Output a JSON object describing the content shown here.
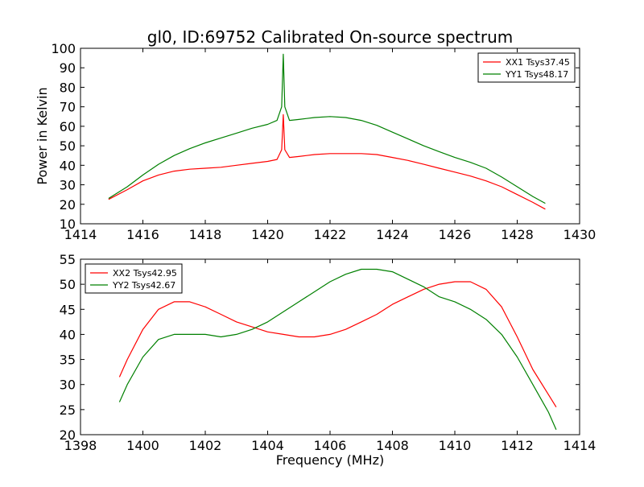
{
  "title": "gl0, ID:69752 Calibrated On-source spectrum",
  "colors": {
    "xx": "#ff0000",
    "yy": "#008000"
  },
  "chart_data": [
    {
      "type": "line",
      "ylabel": "Power in Kelvin",
      "xlabel": "",
      "xlim": [
        1414,
        1430
      ],
      "ylim": [
        10,
        100
      ],
      "xticks": [
        1414,
        1416,
        1418,
        1420,
        1422,
        1424,
        1426,
        1428,
        1430
      ],
      "yticks": [
        10,
        20,
        30,
        40,
        50,
        60,
        70,
        80,
        90,
        100
      ],
      "legend_position": "top-right",
      "series": [
        {
          "name": "XX1 Tsys37.45",
          "color": "#ff0000",
          "x": [
            1414.9,
            1415.5,
            1416.0,
            1416.5,
            1417.0,
            1417.5,
            1418.0,
            1418.5,
            1419.0,
            1419.5,
            1420.0,
            1420.3,
            1420.45,
            1420.5,
            1420.55,
            1420.7,
            1421.0,
            1421.5,
            1422.0,
            1422.5,
            1423.0,
            1423.5,
            1424.0,
            1424.5,
            1425.0,
            1425.5,
            1426.0,
            1426.5,
            1427.0,
            1427.5,
            1428.0,
            1428.5,
            1428.9
          ],
          "y": [
            22.5,
            27.5,
            32.0,
            35.0,
            37.0,
            38.0,
            38.5,
            39.0,
            40.0,
            41.0,
            42.0,
            43.0,
            48.0,
            66.0,
            48.0,
            44.0,
            44.5,
            45.5,
            46.0,
            46.0,
            46.0,
            45.5,
            44.0,
            42.5,
            40.5,
            38.5,
            36.5,
            34.5,
            32.0,
            29.0,
            25.0,
            21.0,
            17.5
          ]
        },
        {
          "name": "YY1 Tsys48.17",
          "color": "#008000",
          "x": [
            1414.9,
            1415.5,
            1416.0,
            1416.5,
            1417.0,
            1417.5,
            1418.0,
            1418.5,
            1419.0,
            1419.5,
            1420.0,
            1420.3,
            1420.45,
            1420.5,
            1420.55,
            1420.7,
            1421.0,
            1421.5,
            1422.0,
            1422.5,
            1423.0,
            1423.5,
            1424.0,
            1424.5,
            1425.0,
            1425.5,
            1426.0,
            1426.5,
            1427.0,
            1427.5,
            1428.0,
            1428.5,
            1428.9
          ],
          "y": [
            23.0,
            29.0,
            35.0,
            40.5,
            45.0,
            48.5,
            51.5,
            54.0,
            56.5,
            59.0,
            61.0,
            63.0,
            70.0,
            97.0,
            70.0,
            63.0,
            63.5,
            64.5,
            65.0,
            64.5,
            63.0,
            60.5,
            57.0,
            53.5,
            50.0,
            47.0,
            44.0,
            41.5,
            38.5,
            34.0,
            29.0,
            24.0,
            20.5
          ]
        }
      ]
    },
    {
      "type": "line",
      "ylabel": "",
      "xlabel": "Frequency (MHz)",
      "xlim": [
        1398,
        1414
      ],
      "ylim": [
        20,
        55
      ],
      "xticks": [
        1398,
        1400,
        1402,
        1404,
        1406,
        1408,
        1410,
        1412,
        1414
      ],
      "yticks": [
        20,
        25,
        30,
        35,
        40,
        45,
        50,
        55
      ],
      "legend_position": "top-left",
      "series": [
        {
          "name": "XX2 Tsys42.95",
          "color": "#ff0000",
          "x": [
            1399.25,
            1399.5,
            1400.0,
            1400.5,
            1401.0,
            1401.5,
            1402.0,
            1402.5,
            1403.0,
            1403.5,
            1404.0,
            1404.5,
            1405.0,
            1405.5,
            1406.0,
            1406.5,
            1407.0,
            1407.5,
            1408.0,
            1408.5,
            1409.0,
            1409.5,
            1410.0,
            1410.5,
            1411.0,
            1411.5,
            1412.0,
            1412.5,
            1413.0,
            1413.25
          ],
          "y": [
            31.5,
            35.0,
            41.0,
            45.0,
            46.5,
            46.5,
            45.5,
            44.0,
            42.5,
            41.5,
            40.5,
            40.0,
            39.5,
            39.5,
            40.0,
            41.0,
            42.5,
            44.0,
            46.0,
            47.5,
            49.0,
            50.0,
            50.5,
            50.5,
            49.0,
            45.5,
            39.5,
            33.0,
            28.0,
            25.5
          ]
        },
        {
          "name": "YY2 Tsys42.67",
          "color": "#008000",
          "x": [
            1399.25,
            1399.5,
            1400.0,
            1400.5,
            1401.0,
            1401.5,
            1402.0,
            1402.5,
            1403.0,
            1403.5,
            1404.0,
            1404.5,
            1405.0,
            1405.5,
            1406.0,
            1406.5,
            1407.0,
            1407.5,
            1408.0,
            1408.5,
            1409.0,
            1409.5,
            1410.0,
            1410.5,
            1411.0,
            1411.5,
            1412.0,
            1412.5,
            1413.0,
            1413.25
          ],
          "y": [
            26.5,
            30.0,
            35.5,
            39.0,
            40.0,
            40.0,
            40.0,
            39.5,
            40.0,
            41.0,
            42.5,
            44.5,
            46.5,
            48.5,
            50.5,
            52.0,
            53.0,
            53.0,
            52.5,
            51.0,
            49.5,
            47.5,
            46.5,
            45.0,
            43.0,
            40.0,
            35.5,
            30.0,
            24.5,
            21.0
          ]
        }
      ]
    }
  ]
}
